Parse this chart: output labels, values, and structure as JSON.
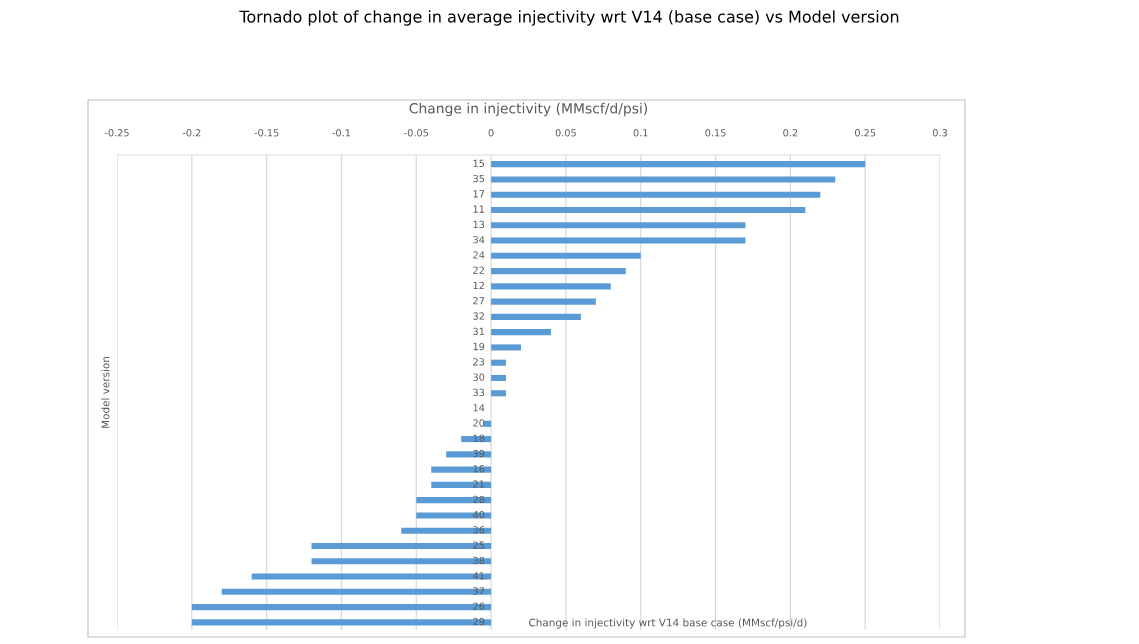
{
  "chart_data": {
    "type": "bar",
    "orientation": "horizontal",
    "title": "Tornado plot of change in average injectivity wrt V14 (base case) vs Model version",
    "subtitle": "Change in injectivity (MMscf/d/psi)",
    "xlabel": "Change in injectivity wrt V14 base case (MMscf/psi/d)",
    "ylabel": "Model version",
    "categories": [
      "15",
      "35",
      "17",
      "11",
      "13",
      "34",
      "24",
      "22",
      "12",
      "27",
      "32",
      "31",
      "19",
      "23",
      "30",
      "33",
      "14",
      "20",
      "18",
      "39",
      "16",
      "21",
      "28",
      "40",
      "36",
      "25",
      "38",
      "41",
      "37",
      "26",
      "29"
    ],
    "values": [
      0.25,
      0.23,
      0.22,
      0.21,
      0.17,
      0.17,
      0.1,
      0.09,
      0.08,
      0.07,
      0.06,
      0.04,
      0.02,
      0.01,
      0.01,
      0.01,
      0,
      -0.005,
      -0.02,
      -0.03,
      -0.04,
      -0.04,
      -0.05,
      -0.05,
      -0.06,
      -0.12,
      -0.12,
      -0.16,
      -0.18,
      -0.2,
      -0.2
    ],
    "color": "#5b9bd5",
    "xlim": [
      -0.25,
      0.3
    ],
    "xticks": [
      -0.25,
      -0.2,
      -0.15,
      -0.1,
      -0.05,
      0,
      0.05,
      0.1,
      0.15,
      0.2,
      0.25,
      0.3
    ],
    "grid": "x",
    "legend": false
  }
}
